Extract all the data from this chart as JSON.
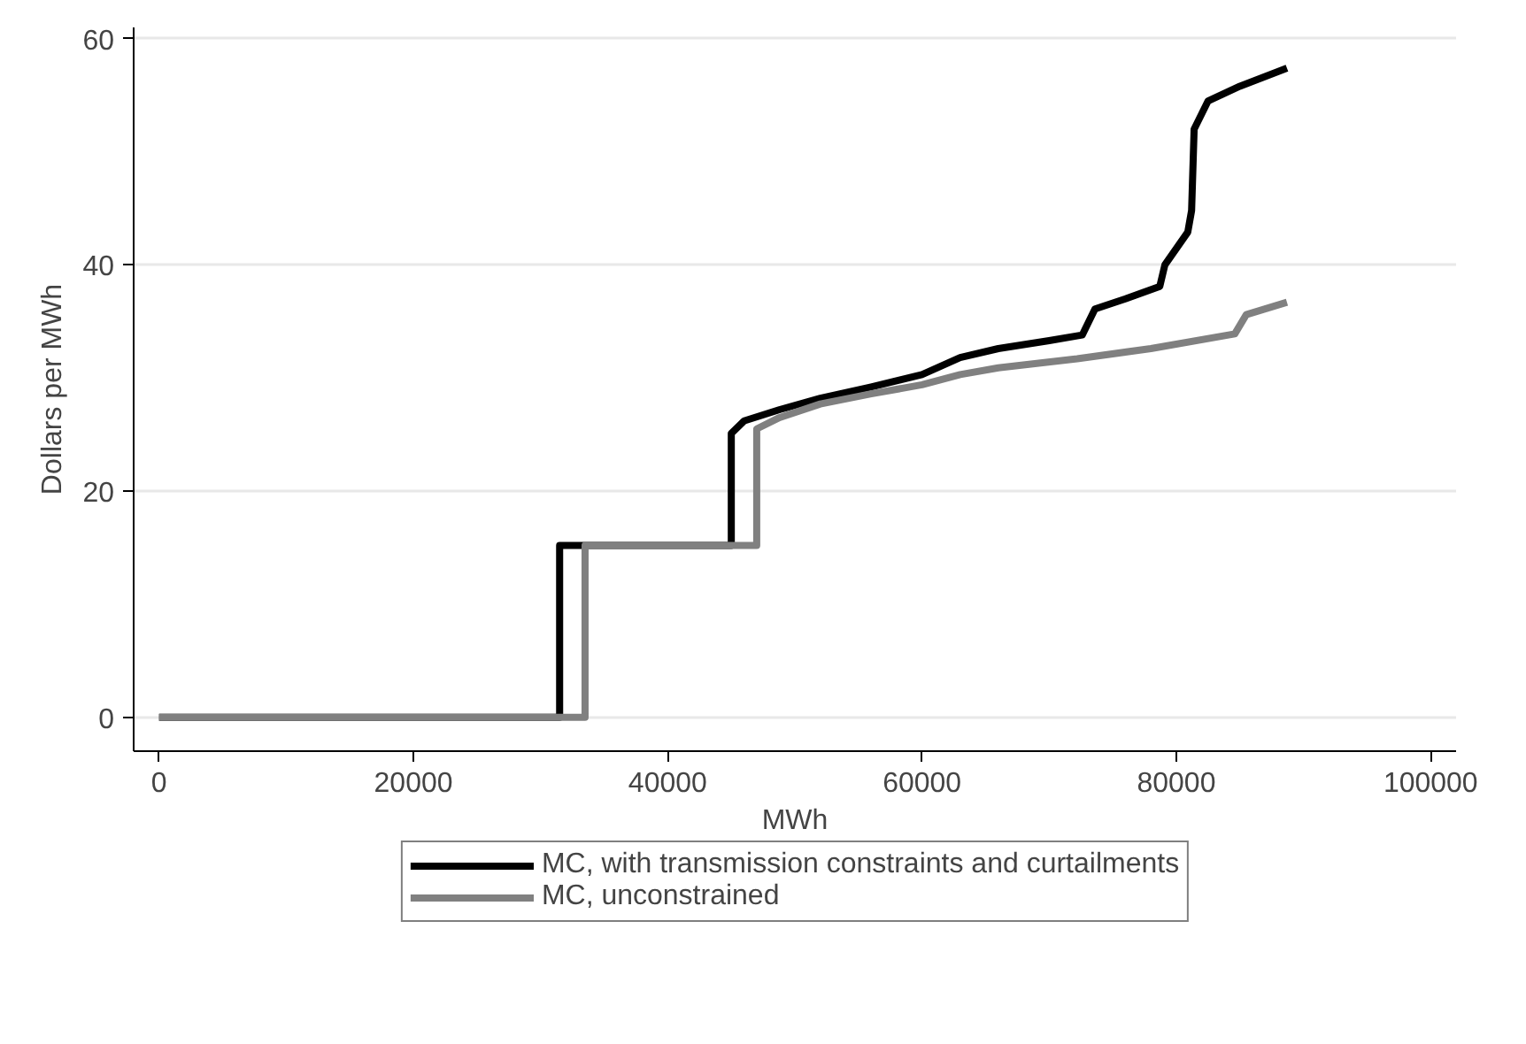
{
  "chart_data": {
    "type": "line",
    "xlabel": "MWh",
    "ylabel": "Dollars per MWh",
    "series": [
      {
        "name": "MC, with transmission constraints and curtailments",
        "color": "#000000",
        "x": [
          0,
          31500,
          31500,
          45000,
          45000,
          46000,
          48800,
          52000,
          56000,
          60000,
          63000,
          66000,
          70000,
          72600,
          73600,
          76000,
          78700,
          79100,
          80900,
          81200,
          81400,
          82500,
          85000,
          88700
        ],
        "values": [
          0,
          0,
          15.2,
          15.2,
          25.1,
          26.2,
          27.2,
          28.2,
          29.2,
          30.3,
          31.8,
          32.6,
          33.3,
          33.8,
          36.1,
          37.0,
          38.1,
          40,
          42.9,
          44.8,
          52,
          54.5,
          55.8,
          57.4
        ]
      },
      {
        "name": "MC, unconstrained",
        "color": "#808080",
        "x": [
          0,
          33500,
          33500,
          47000,
          47000,
          48800,
          52000,
          56000,
          60000,
          63000,
          66000,
          72200,
          78000,
          84600,
          85500,
          88700
        ],
        "values": [
          0,
          0,
          15.2,
          15.2,
          25.5,
          26.5,
          27.7,
          28.6,
          29.4,
          30.3,
          30.9,
          31.7,
          32.6,
          33.9,
          35.6,
          36.7
        ]
      }
    ],
    "xlim": [
      -2000,
      102000
    ],
    "ylim": [
      -3,
      61
    ],
    "xticks": [
      0,
      20000,
      40000,
      60000,
      80000,
      100000
    ],
    "yticks": [
      0,
      20,
      40,
      60
    ],
    "grid": "y",
    "legend": "bottom",
    "line_style": "solid"
  }
}
